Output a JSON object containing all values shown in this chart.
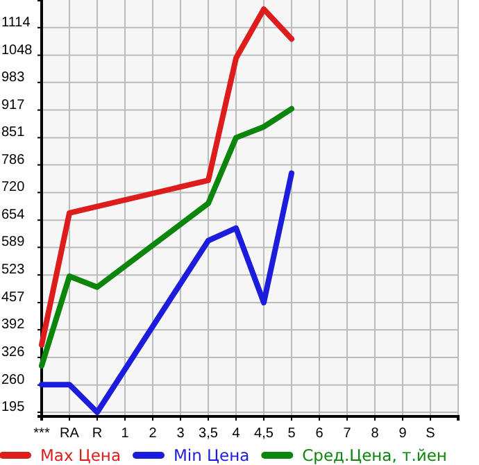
{
  "chart_data": {
    "type": "line",
    "categories": [
      "***",
      "RA",
      "R",
      "1",
      "2",
      "3",
      "3,5",
      "4",
      "4,5",
      "5",
      "6",
      "7",
      "8",
      "9",
      "S"
    ],
    "series": [
      {
        "name": "Max Цена",
        "color": "#dd1c1c",
        "values": [
          356,
          671,
          null,
          null,
          null,
          null,
          749,
          1041,
          1158,
          1087,
          null,
          null,
          null,
          null,
          null
        ]
      },
      {
        "name": "Min Цена",
        "color": "#1c1cdd",
        "values": [
          261,
          261,
          195,
          null,
          null,
          null,
          605,
          635,
          457,
          766,
          null,
          null,
          null,
          null,
          null
        ]
      },
      {
        "name": "Сред.Цена, т.йен",
        "color": "#0b850b",
        "values": [
          306,
          520,
          494,
          null,
          null,
          null,
          694,
          851,
          877,
          920,
          null,
          null,
          null,
          null,
          null
        ]
      }
    ],
    "ylim": [
      185,
      1180
    ],
    "yticks": [
      195,
      260,
      326,
      392,
      457,
      523,
      589,
      654,
      720,
      786,
      851,
      917,
      983,
      1048,
      1114
    ],
    "grid": true,
    "legend": "bottom",
    "marker": "none",
    "line_style": "solid"
  }
}
